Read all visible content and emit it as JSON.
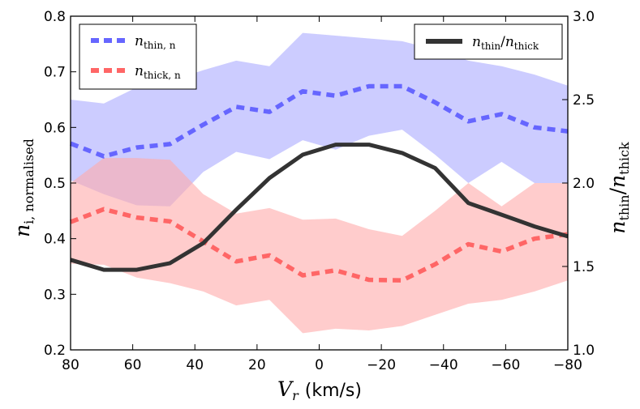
{
  "chart_data": {
    "type": "line",
    "xlabel_var": "V",
    "xlabel_sub": "r",
    "xlabel_unit": "(km/s)",
    "ylabel_left_var": "n",
    "ylabel_left_sub": "i, normalised",
    "ylabel_right_num": "n",
    "ylabel_right_num_sub": "thin",
    "ylabel_right_den": "n",
    "ylabel_right_den_sub": "thick",
    "xlim": [
      80,
      -80
    ],
    "ylim_left": [
      0.2,
      0.8
    ],
    "ylim_right": [
      1.0,
      3.0
    ],
    "xticks": [
      80,
      60,
      40,
      20,
      0,
      -20,
      -40,
      -60,
      -80
    ],
    "xtick_labels": [
      "80",
      "60",
      "40",
      "20",
      "0",
      "−20",
      "−40",
      "−60",
      "−80"
    ],
    "yticks_left": [
      0.2,
      0.3,
      0.4,
      0.5,
      0.6,
      0.7,
      0.8
    ],
    "ytick_left_labels": [
      "0.2",
      "0.3",
      "0.4",
      "0.5",
      "0.6",
      "0.7",
      "0.8"
    ],
    "yticks_right": [
      1.0,
      1.5,
      2.0,
      2.5,
      3.0
    ],
    "ytick_right_labels": [
      "1.0",
      "1.5",
      "2.0",
      "2.5",
      "3.0"
    ],
    "x": [
      80,
      69.3,
      58.7,
      48,
      37.3,
      26.7,
      16,
      5.3,
      -5.3,
      -16,
      -26.7,
      -37.3,
      -48,
      -58.7,
      -69.3,
      -80
    ],
    "series": [
      {
        "name": "n_thin,n",
        "axis": "left",
        "style": "dashed",
        "color": "#6666ff",
        "values": [
          0.571,
          0.548,
          0.564,
          0.57,
          0.605,
          0.637,
          0.628,
          0.665,
          0.657,
          0.674,
          0.674,
          0.645,
          0.611,
          0.624,
          0.6,
          0.593
        ],
        "band_upper": [
          0.65,
          0.643,
          0.672,
          0.683,
          0.703,
          0.72,
          0.71,
          0.77,
          0.765,
          0.76,
          0.755,
          0.74,
          0.72,
          0.71,
          0.695,
          0.675
        ],
        "band_lower": [
          0.505,
          0.48,
          0.46,
          0.458,
          0.52,
          0.556,
          0.543,
          0.577,
          0.56,
          0.585,
          0.596,
          0.551,
          0.5,
          0.538,
          0.5,
          0.5
        ],
        "band_color": "#aaaaff"
      },
      {
        "name": "n_thick,n",
        "axis": "left",
        "style": "dashed",
        "color": "#ff6666",
        "values": [
          0.43,
          0.453,
          0.438,
          0.431,
          0.395,
          0.359,
          0.37,
          0.334,
          0.343,
          0.326,
          0.325,
          0.354,
          0.39,
          0.377,
          0.4,
          0.408
        ],
        "band_upper": [
          0.5,
          0.545,
          0.545,
          0.542,
          0.48,
          0.445,
          0.455,
          0.434,
          0.436,
          0.417,
          0.405,
          0.45,
          0.5,
          0.458,
          0.5,
          0.5
        ],
        "band_lower": [
          0.355,
          0.353,
          0.33,
          0.32,
          0.305,
          0.28,
          0.29,
          0.23,
          0.238,
          0.235,
          0.243,
          0.263,
          0.283,
          0.29,
          0.305,
          0.325
        ],
        "band_color": "#ffaaaa"
      },
      {
        "name": "n_thin/n_thick",
        "axis": "right",
        "style": "solid",
        "color": "#333333",
        "values": [
          1.54,
          1.48,
          1.48,
          1.52,
          1.64,
          1.84,
          2.03,
          2.17,
          2.23,
          2.23,
          2.18,
          2.09,
          1.88,
          1.81,
          1.74,
          1.68
        ]
      }
    ],
    "legend_left": [
      {
        "var": "n",
        "sub": "thin, n",
        "color": "#6666ff"
      },
      {
        "var": "n",
        "sub": "thick, n",
        "color": "#ff6666"
      }
    ],
    "legend_right": {
      "num": "n",
      "num_sub": "thin",
      "slash": "/",
      "den": "n",
      "den_sub": "thick",
      "color": "#333333"
    },
    "legend_left_placement": "top-left",
    "legend_right_placement": "top-right",
    "grid": false
  }
}
